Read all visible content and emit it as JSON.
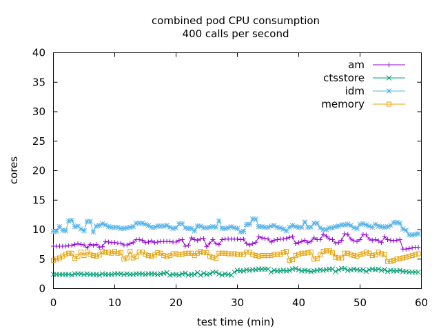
{
  "chart_data": {
    "type": "line",
    "title": "combined pod CPU consumption",
    "subtitle": "400 calls per second",
    "xlabel": "test time (min)",
    "ylabel": "cores",
    "xlim": [
      0,
      60
    ],
    "ylim": [
      0,
      40
    ],
    "xticks": [
      0,
      10,
      20,
      30,
      40,
      50,
      60
    ],
    "yticks": [
      0,
      5,
      10,
      15,
      20,
      25,
      30,
      35,
      40
    ],
    "grid": false,
    "legend_position": "top-right",
    "x": [
      0,
      0.5,
      1,
      1.5,
      2,
      2.5,
      3,
      3.5,
      4,
      4.5,
      5,
      5.5,
      6,
      6.5,
      7,
      7.5,
      8,
      8.5,
      9,
      9.5,
      10,
      10.5,
      11,
      11.5,
      12,
      12.5,
      13,
      13.5,
      14,
      14.5,
      15,
      15.5,
      16,
      16.5,
      17,
      17.5,
      18,
      18.5,
      19,
      19.5,
      20,
      20.5,
      21,
      21.5,
      22,
      22.5,
      23,
      23.5,
      24,
      24.5,
      25,
      25.5,
      26,
      26.5,
      27,
      27.5,
      28,
      28.5,
      29,
      29.5,
      30,
      30.5,
      31,
      31.5,
      32,
      32.5,
      33,
      33.5,
      34,
      34.5,
      35,
      35.5,
      36,
      36.5,
      37,
      37.5,
      38,
      38.5,
      39,
      39.5,
      40,
      40.5,
      41,
      41.5,
      42,
      42.5,
      43,
      43.5,
      44,
      44.5,
      45,
      45.5,
      46,
      46.5,
      47,
      47.5,
      48,
      48.5,
      49,
      49.5,
      50,
      50.5,
      51,
      51.5,
      52,
      52.5,
      53,
      53.5,
      54,
      54.5,
      55,
      55.5,
      56,
      56.5,
      57,
      57.5,
      58,
      58.5,
      59,
      59.5
    ],
    "series": [
      {
        "name": "am",
        "color": "#9400d3",
        "marker": "plus",
        "values": [
          7.2,
          7.2,
          7.2,
          7.2,
          7.2,
          7.3,
          7.3,
          7.5,
          7.6,
          7.5,
          7.4,
          6.9,
          7.5,
          7.3,
          7.5,
          7.0,
          7.1,
          8.0,
          7.9,
          7.8,
          7.8,
          7.7,
          7.7,
          7.4,
          7.4,
          7.6,
          7.8,
          8.3,
          8.3,
          8.2,
          7.8,
          7.9,
          8.1,
          7.8,
          7.9,
          8.0,
          8.0,
          8.0,
          8.0,
          7.9,
          7.9,
          8.2,
          8.3,
          7.2,
          7.3,
          8.6,
          8.3,
          8.2,
          8.4,
          8.5,
          7.1,
          7.7,
          8.3,
          7.6,
          7.5,
          8.3,
          8.4,
          8.4,
          8.4,
          8.4,
          8.4,
          8.3,
          8.4,
          7.6,
          7.4,
          7.6,
          7.8,
          8.8,
          8.6,
          8.5,
          8.4,
          7.9,
          8.2,
          8.3,
          8.4,
          8.4,
          8.5,
          8.7,
          8.8,
          7.6,
          7.8,
          8.0,
          8.2,
          7.8,
          8.0,
          8.6,
          8.3,
          8.3,
          9.2,
          8.9,
          8.4,
          8.3,
          7.7,
          7.8,
          8.2,
          9.3,
          9.2,
          8.4,
          8.1,
          8.0,
          8.3,
          9.2,
          9.1,
          8.4,
          8.2,
          8.3,
          8.1,
          7.8,
          8.8,
          8.3,
          8.2,
          8.1,
          8.2,
          8.3,
          6.7,
          6.7,
          6.8,
          6.9,
          7.0,
          7.0
        ]
      },
      {
        "name": "ctsstore",
        "color": "#009e73",
        "marker": "cross",
        "values": [
          2.4,
          2.4,
          2.4,
          2.4,
          2.4,
          2.4,
          2.3,
          2.5,
          2.5,
          2.5,
          2.4,
          2.5,
          2.4,
          2.4,
          2.4,
          2.3,
          2.5,
          2.4,
          2.4,
          2.4,
          2.5,
          2.5,
          2.5,
          2.4,
          2.5,
          2.4,
          2.4,
          2.5,
          2.5,
          2.5,
          2.4,
          2.5,
          2.5,
          2.5,
          2.4,
          2.5,
          2.6,
          2.7,
          2.3,
          2.4,
          2.4,
          2.3,
          2.5,
          2.6,
          2.3,
          2.4,
          2.4,
          2.7,
          2.3,
          2.6,
          2.4,
          2.5,
          2.8,
          2.8,
          2.5,
          2.3,
          2.5,
          2.4,
          2.3,
          2.8,
          3.1,
          3.0,
          3.0,
          3.2,
          3.1,
          3.2,
          3.2,
          3.3,
          3.3,
          3.3,
          3.3,
          2.8,
          3.1,
          3.0,
          3.0,
          3.1,
          3.0,
          3.1,
          3.3,
          3.4,
          3.2,
          3.0,
          3.1,
          3.0,
          2.9,
          3.0,
          3.1,
          3.2,
          3.1,
          3.2,
          3.3,
          3.3,
          2.9,
          3.2,
          3.4,
          3.4,
          3.1,
          3.2,
          3.3,
          3.2,
          3.1,
          3.2,
          2.9,
          3.2,
          3.3,
          3.2,
          3.3,
          3.1,
          3.2,
          2.9,
          3.1,
          3.0,
          3.0,
          3.1,
          2.9,
          2.9,
          2.8,
          2.8,
          2.8,
          2.8
        ]
      },
      {
        "name": "idm",
        "color": "#56b4e9",
        "marker": "star",
        "values": [
          9.7,
          9.7,
          10.5,
          9.9,
          9.8,
          11.5,
          11.6,
          10.5,
          10.6,
          10.1,
          9.8,
          11.4,
          11.4,
          9.6,
          10.6,
          10.7,
          11.0,
          10.8,
          10.5,
          10.4,
          10.4,
          10.4,
          10.2,
          10.2,
          10.3,
          10.4,
          10.5,
          11.1,
          11.1,
          11.1,
          10.9,
          10.7,
          10.4,
          10.4,
          10.6,
          10.6,
          10.6,
          10.7,
          10.4,
          10.2,
          10.3,
          11.0,
          11.0,
          10.3,
          10.2,
          10.2,
          9.8,
          10.6,
          10.6,
          10.3,
          10.3,
          10.4,
          10.5,
          10.4,
          11.5,
          10.2,
          10.2,
          10.3,
          10.5,
          10.3,
          10.2,
          9.6,
          9.7,
          10.9,
          10.9,
          11.8,
          11.8,
          10.5,
          10.5,
          10.4,
          10.4,
          10.6,
          10.7,
          10.4,
          10.3,
          10.1,
          9.8,
          10.4,
          10.7,
          10.5,
          10.4,
          10.4,
          11.3,
          10.4,
          10.4,
          11.1,
          11.1,
          10.3,
          10.0,
          10.0,
          10.3,
          10.3,
          10.5,
          10.6,
          10.8,
          10.8,
          10.9,
          10.7,
          10.3,
          10.2,
          10.9,
          11.0,
          10.8,
          10.6,
          10.4,
          10.9,
          10.6,
          10.5,
          10.4,
          10.5,
          10.7,
          11.2,
          11.2,
          11.1,
          10.1,
          9.9,
          9.1,
          9.1,
          9.2,
          9.3
        ]
      },
      {
        "name": "memory",
        "color": "#e69f00",
        "marker": "square",
        "values": [
          4.8,
          5.0,
          5.2,
          5.5,
          5.8,
          6.0,
          6.0,
          5.1,
          5.5,
          6.2,
          5.6,
          6.2,
          5.8,
          5.6,
          5.5,
          5.7,
          6.3,
          6.1,
          6.2,
          6.0,
          6.3,
          6.0,
          6.1,
          5.0,
          5.2,
          6.3,
          5.2,
          5.5,
          6.2,
          6.2,
          5.8,
          5.6,
          5.5,
          5.7,
          6.1,
          6.0,
          5.6,
          5.4,
          5.6,
          5.9,
          5.9,
          5.8,
          5.8,
          6.0,
          6.0,
          6.0,
          5.6,
          6.0,
          6.3,
          6.1,
          6.1,
          5.5,
          5.3,
          5.1,
          6.0,
          6.0,
          6.0,
          5.9,
          5.9,
          5.9,
          5.8,
          5.8,
          5.8,
          6.2,
          6.2,
          5.8,
          5.6,
          5.5,
          5.6,
          5.6,
          5.6,
          5.6,
          5.8,
          5.8,
          5.8,
          6.1,
          6.3,
          4.8,
          4.9,
          5.6,
          5.8,
          6.0,
          6.0,
          6.1,
          6.2,
          5.0,
          5.1,
          5.7,
          6.3,
          6.4,
          6.4,
          6.1,
          5.3,
          5.2,
          5.2,
          6.0,
          6.0,
          5.8,
          5.6,
          5.5,
          5.8,
          5.9,
          6.2,
          6.0,
          5.6,
          5.7,
          6.2,
          5.9,
          5.8,
          4.6,
          4.6,
          4.8,
          5.0,
          5.1,
          5.2,
          5.3,
          5.5,
          5.6,
          5.8,
          5.9
        ]
      }
    ]
  }
}
